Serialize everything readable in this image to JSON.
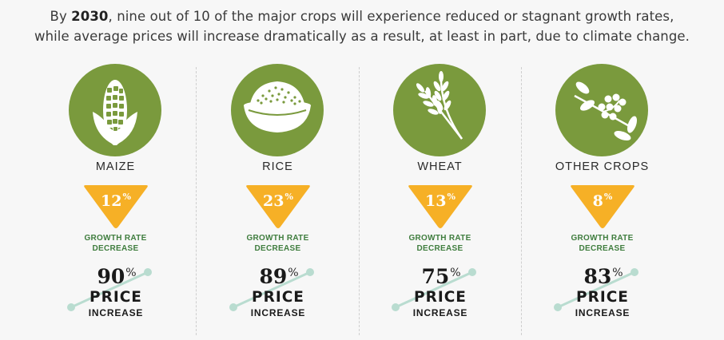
{
  "header": {
    "line1_prefix": "By ",
    "line1_bold": "2030",
    "line1_suffix": ", nine out of 10 of the major crops will experience reduced or stagnant growth rates,",
    "line2": "while average prices will increase dramatically as a result, at least in part, due to climate change."
  },
  "colors": {
    "circle_green": "#7a9a3d",
    "triangle_orange": "#f6b026",
    "label_green": "#3f7d3e",
    "line_teal": "#b9dcd0"
  },
  "crops": [
    {
      "name": "MAIZE",
      "icon": "corn-icon",
      "growth_value": "12",
      "growth_unit": "%",
      "growth_label_1": "GROWTH RATE",
      "growth_label_2": "DECREASE",
      "price_value": "90",
      "price_unit": "%",
      "price_word": "PRICE",
      "increase_word": "INCREASE"
    },
    {
      "name": "RICE",
      "icon": "rice-bowl-icon",
      "growth_value": "23",
      "growth_unit": "%",
      "growth_label_1": "GROWTH RATE",
      "growth_label_2": "DECREASE",
      "price_value": "89",
      "price_unit": "%",
      "price_word": "PRICE",
      "increase_word": "INCREASE"
    },
    {
      "name": "WHEAT",
      "icon": "wheat-icon",
      "growth_value": "13",
      "growth_unit": "%",
      "growth_label_1": "GROWTH RATE",
      "growth_label_2": "DECREASE",
      "price_value": "75",
      "price_unit": "%",
      "price_word": "PRICE",
      "increase_word": "INCREASE"
    },
    {
      "name": "OTHER CROPS",
      "icon": "berries-branch-icon",
      "growth_value": "8",
      "growth_unit": "%",
      "growth_label_1": "GROWTH RATE",
      "growth_label_2": "DECREASE",
      "price_value": "83",
      "price_unit": "%",
      "price_word": "PRICE",
      "increase_word": "INCREASE"
    }
  ]
}
